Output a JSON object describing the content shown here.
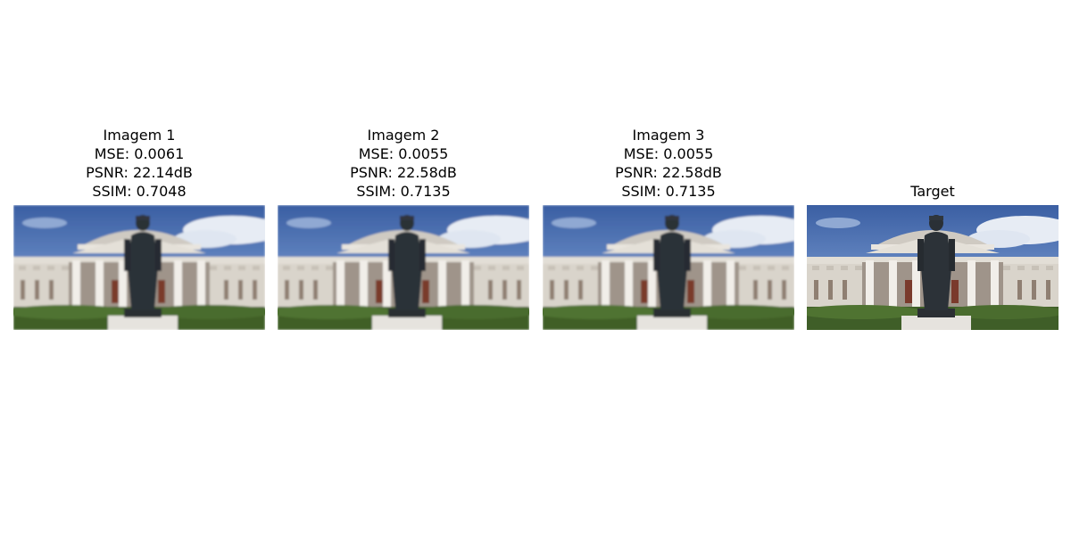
{
  "panels": [
    {
      "title": "Imagem 1",
      "mse": "MSE: 0.0061",
      "psnr": "PSNR: 22.14dB",
      "ssim": "SSIM: 0.7048",
      "blurred": true
    },
    {
      "title": "Imagem 2",
      "mse": "MSE: 0.0055",
      "psnr": "PSNR: 22.58dB",
      "ssim": "SSIM: 0.7135",
      "blurred": true
    },
    {
      "title": "Imagem 3",
      "mse": "MSE: 0.0055",
      "psnr": "PSNR: 22.58dB",
      "ssim": "SSIM: 0.7135",
      "blurred": true
    },
    {
      "title": "Target",
      "blurred": false
    }
  ]
}
